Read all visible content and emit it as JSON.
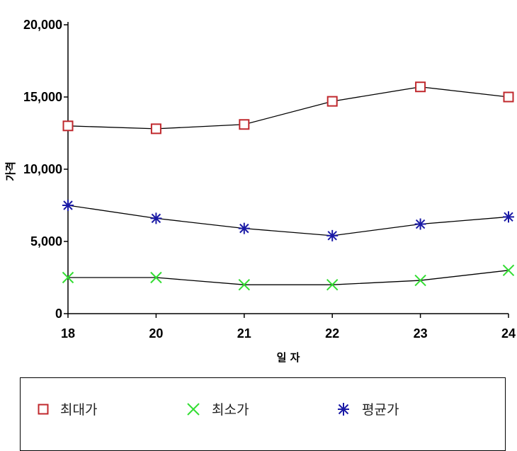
{
  "chart_data": {
    "type": "line",
    "xlabel": "일 자",
    "ylabel": "가격",
    "categories": [
      "18",
      "20",
      "21",
      "22",
      "23",
      "24"
    ],
    "ylim": [
      0,
      20000
    ],
    "yticks": [
      0,
      5000,
      10000,
      15000,
      20000
    ],
    "ytick_labels": [
      "0",
      "5,000",
      "10,000",
      "15,000",
      "20,000"
    ],
    "grid": false,
    "legend_position": "bottom",
    "series": [
      {
        "name": "최대가",
        "marker": "square",
        "color": "#c0282d",
        "values": [
          13000,
          12800,
          13100,
          14700,
          15700,
          15000
        ]
      },
      {
        "name": "최소가",
        "marker": "x",
        "color": "#33dd33",
        "values": [
          2500,
          2500,
          2000,
          2000,
          2300,
          3000
        ]
      },
      {
        "name": "평균가",
        "marker": "asterisk",
        "color": "#1a1aa6",
        "values": [
          7500,
          6600,
          5900,
          5400,
          6200,
          6700
        ]
      }
    ]
  }
}
